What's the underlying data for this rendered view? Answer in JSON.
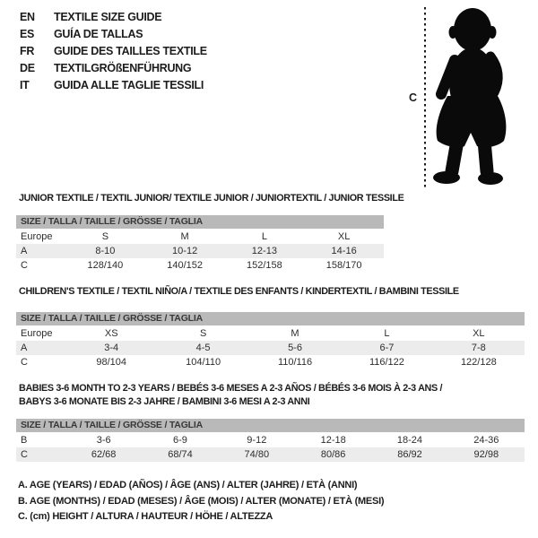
{
  "languages": [
    {
      "code": "EN",
      "label": "TEXTILE SIZE GUIDE"
    },
    {
      "code": "ES",
      "label": "GUÍA DE TALLAS"
    },
    {
      "code": "FR",
      "label": "GUIDE DES TAILLES TEXTILE"
    },
    {
      "code": "DE",
      "label": "TEXTILGRÖßENFÜHRUNG"
    },
    {
      "code": "IT",
      "label": "GUIDA ALLE TAGLIE TESSILI"
    }
  ],
  "figure": {
    "icon": "baby-silhouette",
    "height_label": "C"
  },
  "sections": [
    {
      "title_lines": [
        "JUNIOR TEXTILE / TEXTIL JUNIOR/ TEXTILE JUNIOR / JUNIORTEXTIL / JUNIOR TESSILE"
      ],
      "table_header": "SIZE / TALLA / TAILLE / GRÖSSE / TAGLIA",
      "rows": [
        {
          "label": "Europe",
          "values": [
            "S",
            "M",
            "L",
            "XL"
          ]
        },
        {
          "label": "A",
          "values": [
            "8-10",
            "10-12",
            "12-13",
            "14-16"
          ]
        },
        {
          "label": "C",
          "values": [
            "128/140",
            "140/152",
            "152/158",
            "158/170"
          ]
        }
      ]
    },
    {
      "title_lines": [
        "CHILDREN'S TEXTILE / TEXTIL NIÑO/A / TEXTILE DES ENFANTS / KINDERTEXTIL / BAMBINI TESSILE"
      ],
      "table_header": "SIZE / TALLA / TAILLE / GRÖSSE / TAGLIA",
      "rows": [
        {
          "label": "Europe",
          "values": [
            "XS",
            "S",
            "M",
            "L",
            "XL"
          ]
        },
        {
          "label": "A",
          "values": [
            "3-4",
            "4-5",
            "5-6",
            "6-7",
            "7-8"
          ]
        },
        {
          "label": "C",
          "values": [
            "98/104",
            "104/110",
            "110/116",
            "116/122",
            "122/128"
          ]
        }
      ]
    },
    {
      "title_lines": [
        "BABIES 3-6 MONTH TO 2-3 YEARS / BEBÉS 3-6 MESES A 2-3 AÑOS / BÉBÉS 3-6 MOIS À 2-3 ANS /",
        "BABYS 3-6 MONATE BIS 2-3 JAHRE / BAMBINI 3-6 MESI A 2-3 ANNI"
      ],
      "table_header": "SIZE / TALLA / TAILLE / GRÖSSE / TAGLIA",
      "rows": [
        {
          "label": "B",
          "values": [
            "3-6",
            "6-9",
            "9-12",
            "12-18",
            "18-24",
            "24-36"
          ]
        },
        {
          "label": "C",
          "values": [
            "62/68",
            "68/74",
            "74/80",
            "80/86",
            "86/92",
            "92/98"
          ]
        }
      ]
    }
  ],
  "notes": [
    "A. AGE (YEARS) / EDAD (AÑOS) / ÂGE (ANS) / ALTER (JAHRE) / ETÀ (ANNI)",
    "B. AGE (MONTHS) / EDAD (MESES) / ÂGE (MOIS) / ALTER (MONATE) / ETÀ (MESI)",
    "C. (cm) HEIGHT / ALTURA / HAUTEUR / HÖHE / ALTEZZA"
  ],
  "colors": {
    "table_header_bg": "#b9b9b9",
    "row_alt_bg": "#ececec",
    "silhouette": "#0a0a0a",
    "measure_line": "#1a1a1a"
  }
}
